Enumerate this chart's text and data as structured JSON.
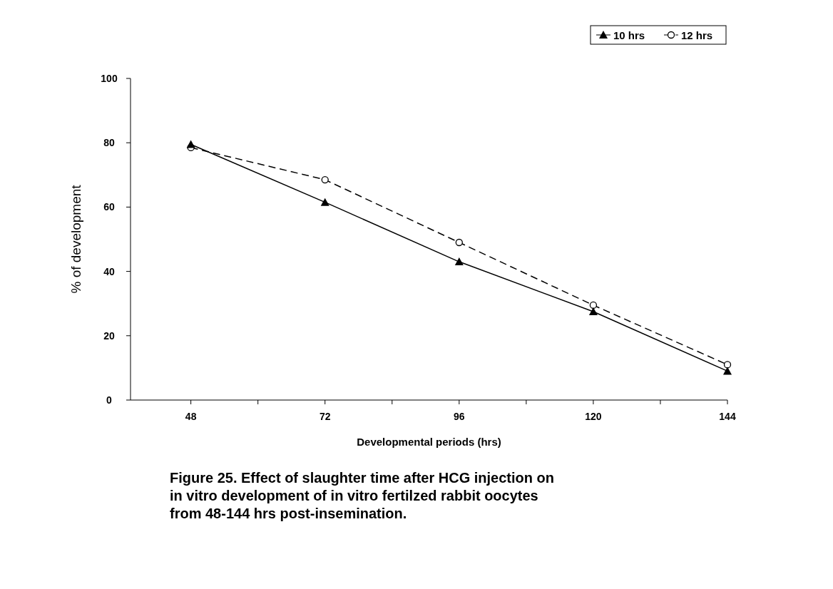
{
  "chart_data": {
    "type": "line",
    "xlabel": "Developmental periods (hrs)",
    "ylabel": "% of development",
    "categories": [
      "48",
      "72",
      "96",
      "120",
      "144"
    ],
    "series": [
      {
        "name": "10 hrs",
        "color": "#000000",
        "marker": "triangle",
        "line_style": "solid",
        "values": [
          79.5,
          61.5,
          43,
          27.5,
          9
        ]
      },
      {
        "name": "12 hrs",
        "color": "#000000",
        "marker": "circle",
        "line_style": "dashed",
        "values": [
          78.5,
          68.5,
          49,
          29.5,
          11
        ]
      }
    ],
    "ylim": [
      0,
      100
    ],
    "yticks": [
      0,
      20,
      40,
      60,
      80,
      100
    ],
    "legend": "top right",
    "annotations": [
      "Figure 25. Effect of slaughter time after HCG injection on in vitro development of in vitro fertilzed rabbit oocytes from 48-144 hrs post-insemination."
    ]
  }
}
